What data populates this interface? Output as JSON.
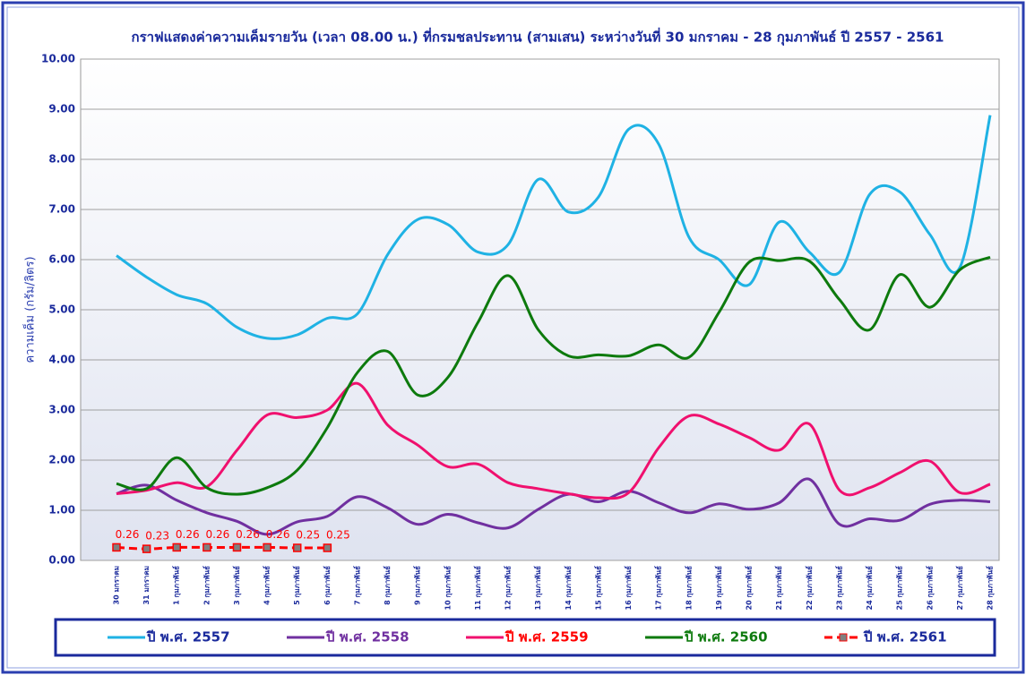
{
  "chart_data": {
    "type": "line",
    "title": "กราฟแสดงค่าความเค็มรายวัน (เวลา 08.00 น.) ที่กรมชลประทาน (สามเสน) ระหว่างวันที่ 30 มกราคม - 28 กุมภาพันธ์ ปี 2557 - 2561",
    "y_label": "ความเค็ม (กรัม/ลิตร)",
    "categories": [
      "30 มกราคม",
      "31 มกราคม",
      "1 กุมภาพันธ์",
      "2 กุมภาพันธ์",
      "3 กุมภาพันธ์",
      "4 กุมภาพันธ์",
      "5 กุมภาพันธ์",
      "6 กุมภาพันธ์",
      "7 กุมภาพันธ์",
      "8 กุมภาพันธ์",
      "9 กุมภาพันธ์",
      "10 กุมภาพันธ์",
      "11 กุมภาพันธ์",
      "12 กุมภาพันธ์",
      "13 กุมภาพันธ์",
      "14 กุมภาพันธ์",
      "15 กุมภาพันธ์",
      "16 กุมภาพันธ์",
      "17 กุมภาพันธ์",
      "18 กุมภาพันธ์",
      "19 กุมภาพันธ์",
      "20 กุมภาพันธ์",
      "21 กุมภาพันธ์",
      "22 กุมภาพันธ์",
      "23 กุมภาพันธ์",
      "24 กุมภาพันธ์",
      "25 กุมภาพันธ์",
      "26 กุมภาพันธ์",
      "27 กุมภาพันธ์",
      "28 กุมภาพันธ์"
    ],
    "series": [
      {
        "name": "ปี พ.ศ. 2557",
        "color": "#1fb2e4",
        "label_color": "#1a2a9c",
        "values": [
          6.08,
          5.65,
          5.3,
          5.12,
          4.65,
          4.43,
          4.5,
          4.83,
          4.92,
          6.1,
          6.8,
          6.7,
          6.15,
          6.3,
          7.6,
          6.95,
          7.25,
          8.6,
          8.3,
          6.45,
          6.0,
          5.5,
          6.75,
          6.15,
          5.75,
          7.3,
          7.35,
          6.5,
          5.85,
          8.88
        ]
      },
      {
        "name": "ปี พ.ศ. 2558",
        "color": "#7030a0",
        "label_color": "#7030a0",
        "values": [
          1.33,
          1.5,
          1.2,
          0.95,
          0.78,
          0.52,
          0.77,
          0.88,
          1.27,
          1.05,
          0.72,
          0.92,
          0.75,
          0.65,
          1.02,
          1.32,
          1.17,
          1.38,
          1.15,
          0.95,
          1.13,
          1.02,
          1.15,
          1.62,
          0.72,
          0.83,
          0.8,
          1.12,
          1.2,
          1.17
        ]
      },
      {
        "name": "ปี พ.ศ. 2559",
        "color": "#f0106e",
        "label_color": "#ff0000",
        "values": [
          1.33,
          1.4,
          1.55,
          1.47,
          2.2,
          2.9,
          2.85,
          3.0,
          3.53,
          2.7,
          2.3,
          1.87,
          1.92,
          1.55,
          1.43,
          1.33,
          1.25,
          1.35,
          2.25,
          2.88,
          2.72,
          2.45,
          2.2,
          2.72,
          1.4,
          1.45,
          1.75,
          1.98,
          1.35,
          1.52
        ]
      },
      {
        "name": "ปี พ.ศ. 2560",
        "color": "#0d7a0d",
        "label_color": "#0d7a0d",
        "values": [
          1.53,
          1.43,
          2.05,
          1.45,
          1.32,
          1.45,
          1.8,
          2.65,
          3.75,
          4.17,
          3.3,
          3.65,
          4.75,
          5.68,
          4.6,
          4.08,
          4.1,
          4.08,
          4.3,
          4.05,
          4.95,
          5.95,
          5.98,
          5.97,
          5.2,
          4.6,
          5.7,
          5.05,
          5.8,
          6.05
        ]
      },
      {
        "name": "ปี พ.ศ. 2561",
        "color": "#ff0000",
        "label_color": "#1a2a9c",
        "dashed": true,
        "markers": true,
        "data_labels": true,
        "values": [
          0.26,
          0.23,
          0.26,
          0.26,
          0.26,
          0.26,
          0.25,
          0.25,
          null,
          null,
          null,
          null,
          null,
          null,
          null,
          null,
          null,
          null,
          null,
          null,
          null,
          null,
          null,
          null,
          null,
          null,
          null,
          null,
          null,
          null
        ]
      }
    ],
    "ylim": [
      0,
      10
    ],
    "yticks": [
      {
        "value": 0,
        "label": "0.00"
      },
      {
        "value": 1,
        "label": "1.00"
      },
      {
        "value": 2,
        "label": "2.00"
      },
      {
        "value": 3,
        "label": "3.00"
      },
      {
        "value": 4,
        "label": "4.00"
      },
      {
        "value": 5,
        "label": "5.00"
      },
      {
        "value": 6,
        "label": "6.00"
      },
      {
        "value": 7,
        "label": "7.00"
      },
      {
        "value": 8,
        "label": "8.00"
      },
      {
        "value": 9,
        "label": "9.00"
      },
      {
        "value": 10,
        "label": "10.00"
      }
    ],
    "grid": true,
    "smooth": true
  }
}
